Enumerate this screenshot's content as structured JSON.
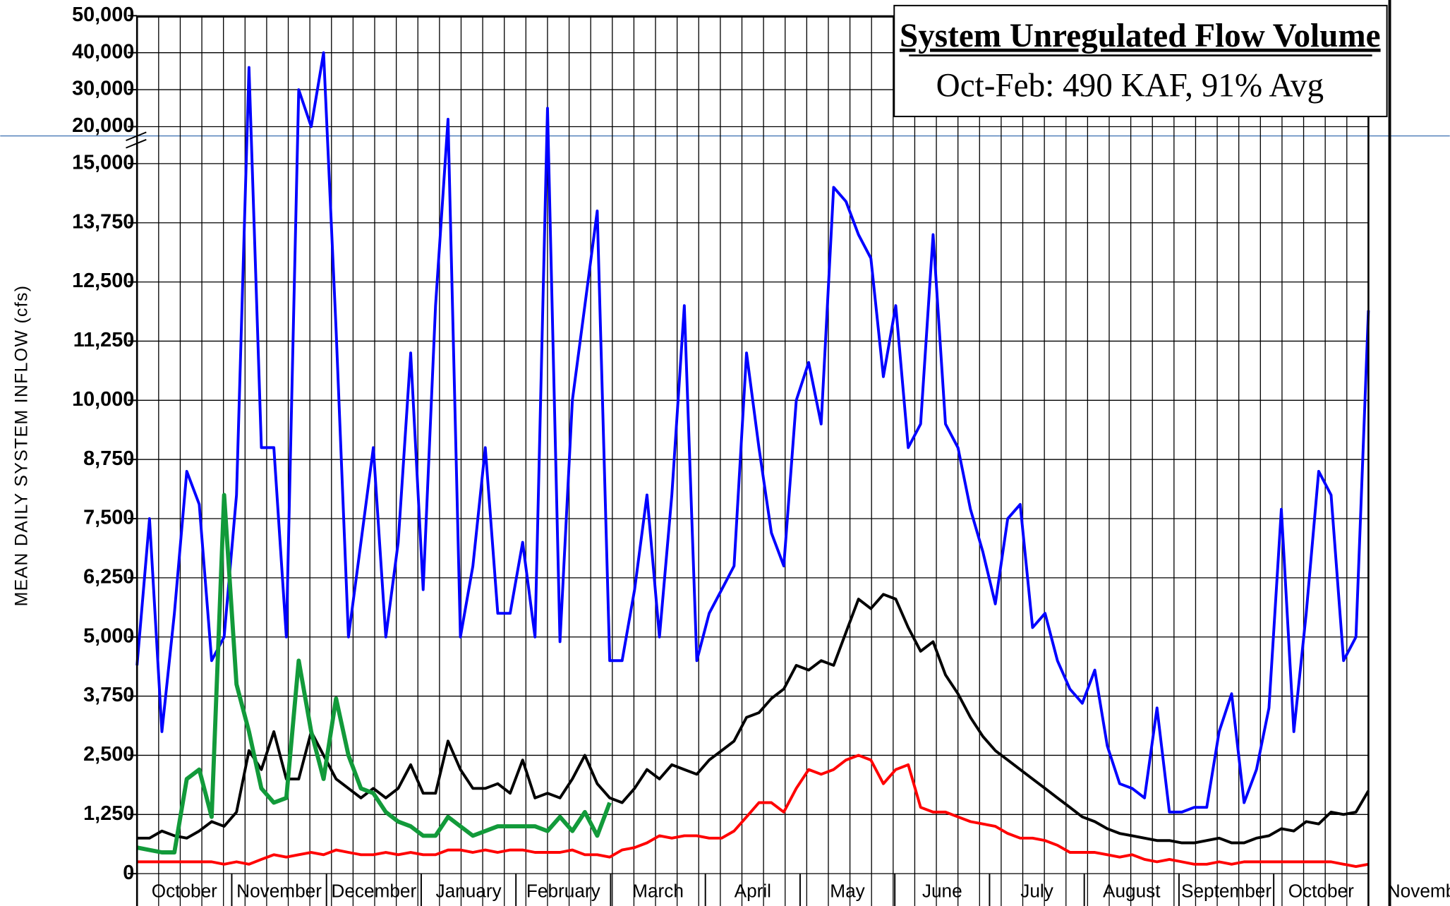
{
  "chart_data": {
    "type": "line",
    "title": "System Unregulated Flow Volume",
    "subtitle": "Oct-Feb: 490 KAF, 91% Avg",
    "y_label": "MEAN DAILY SYSTEM INFLOW (cfs)",
    "months": [
      "October",
      "November",
      "December",
      "January",
      "February",
      "March",
      "April",
      "May",
      "June",
      "July",
      "August",
      "September",
      "October",
      "November"
    ],
    "ylim": [
      0,
      50000
    ],
    "yticks": [
      0,
      {
        "value": 1250,
        "label": "1,250"
      },
      {
        "value": 2500,
        "label": "2,500"
      },
      {
        "value": 3750,
        "label": "3,750"
      },
      {
        "value": 5000,
        "label": "5,000"
      },
      {
        "value": 6250,
        "label": "6,250"
      },
      {
        "value": 7500,
        "label": "7,500"
      },
      {
        "value": 8750,
        "label": "8,750"
      },
      {
        "value": 10000,
        "label": "10,000"
      },
      {
        "value": 11250,
        "label": "11,250"
      },
      {
        "value": 12500,
        "label": "12,500"
      },
      {
        "value": 13750,
        "label": "13,750"
      },
      {
        "value": 15000,
        "label": "15,000"
      },
      {
        "value": 20000,
        "label": "20,000"
      },
      {
        "value": 30000,
        "label": "30,000"
      },
      {
        "value": 40000,
        "label": "40,000"
      },
      {
        "value": 50000,
        "label": "50,000"
      }
    ],
    "grid": true,
    "series": [
      {
        "color": "#0000ff",
        "values": [
          4400,
          7500,
          3000,
          5500,
          8500,
          7800,
          4500,
          5000,
          8000,
          36000,
          9000,
          9000,
          5000,
          30000,
          20000,
          40000,
          11500,
          5000,
          7000,
          9000,
          5000,
          7000,
          11000,
          6000,
          12000,
          22000,
          5000,
          6500,
          9000,
          5500,
          5500,
          7000,
          5000,
          25000,
          4900,
          10000,
          12000,
          14000,
          4500,
          4500,
          6000,
          8000,
          5000,
          8000,
          12000,
          4500,
          5500,
          6000,
          6500,
          11000,
          9000,
          7200,
          6500,
          10000,
          10800,
          9500,
          14500,
          14200,
          13500,
          13000,
          10500,
          12000,
          9000,
          9500,
          13500,
          9500,
          9000,
          7700,
          6800,
          5700,
          7500,
          7800,
          5200,
          5500,
          4500,
          3900,
          3600,
          4300,
          2700,
          1900,
          1800,
          1600,
          3500,
          1300,
          1300,
          1400,
          1400,
          3000,
          3800,
          1500,
          2200,
          3500,
          7700,
          3000,
          5500,
          8500,
          8000,
          4500,
          5000,
          11900
        ]
      },
      {
        "color": "#000000",
        "values": [
          750,
          750,
          900,
          800,
          750,
          900,
          1100,
          1000,
          1300,
          2600,
          2200,
          3000,
          2000,
          2000,
          3000,
          2500,
          2000,
          1800,
          1600,
          1800,
          1600,
          1800,
          2300,
          1700,
          1700,
          2800,
          2200,
          1800,
          1800,
          1900,
          1700,
          2400,
          1600,
          1700,
          1600,
          2000,
          2500,
          1900,
          1600,
          1500,
          1800,
          2200,
          2000,
          2300,
          2200,
          2100,
          2400,
          2600,
          2800,
          3300,
          3400,
          3700,
          3900,
          4400,
          4300,
          4500,
          4400,
          5100,
          5800,
          5600,
          5900,
          5800,
          5200,
          4700,
          4900,
          4200,
          3800,
          3300,
          2900,
          2600,
          2400,
          2200,
          2000,
          1800,
          1600,
          1400,
          1200,
          1100,
          950,
          850,
          800,
          750,
          700,
          700,
          650,
          650,
          700,
          750,
          650,
          650,
          750,
          800,
          950,
          900,
          1100,
          1050,
          1300,
          1250,
          1300,
          1750
        ]
      },
      {
        "color": "#ff0000",
        "values": [
          250,
          250,
          250,
          250,
          250,
          250,
          250,
          200,
          250,
          200,
          300,
          400,
          350,
          400,
          450,
          400,
          500,
          450,
          400,
          400,
          450,
          400,
          450,
          400,
          400,
          500,
          500,
          450,
          500,
          450,
          500,
          500,
          450,
          450,
          450,
          500,
          400,
          400,
          350,
          500,
          550,
          650,
          800,
          750,
          800,
          800,
          750,
          750,
          900,
          1200,
          1500,
          1500,
          1300,
          1800,
          2200,
          2100,
          2200,
          2400,
          2500,
          2400,
          1900,
          2200,
          2300,
          1400,
          1300,
          1300,
          1200,
          1100,
          1050,
          1000,
          850,
          750,
          750,
          700,
          600,
          450,
          450,
          450,
          400,
          350,
          400,
          300,
          250,
          300,
          250,
          200,
          200,
          250,
          200,
          250,
          250,
          250,
          250,
          250,
          250,
          250,
          250,
          200,
          150,
          200
        ]
      },
      {
        "color": "#129a3a",
        "values": [
          550,
          500,
          450,
          450,
          2000,
          2200,
          1200,
          8000,
          4000,
          3000,
          1800,
          1500,
          1600,
          4500,
          3000,
          2000,
          3700,
          2500,
          1800,
          1700,
          1300,
          1100,
          1000,
          800,
          800,
          1200,
          1000,
          800,
          900,
          1000,
          1000,
          1000,
          1000,
          900,
          1200,
          900,
          1300,
          800,
          1500,
          null,
          null,
          null,
          null,
          null,
          null,
          null,
          null,
          null,
          null,
          null,
          null,
          null,
          null,
          null,
          null,
          null,
          null,
          null,
          null,
          null,
          null,
          null,
          null,
          null,
          null,
          null,
          null,
          null,
          null,
          null,
          null,
          null,
          null,
          null,
          null,
          null,
          null,
          null,
          null,
          null,
          null,
          null,
          null,
          null,
          null,
          null,
          null,
          null,
          null,
          null,
          null,
          null,
          null,
          null,
          null,
          null,
          null,
          null,
          null,
          null
        ]
      }
    ]
  }
}
